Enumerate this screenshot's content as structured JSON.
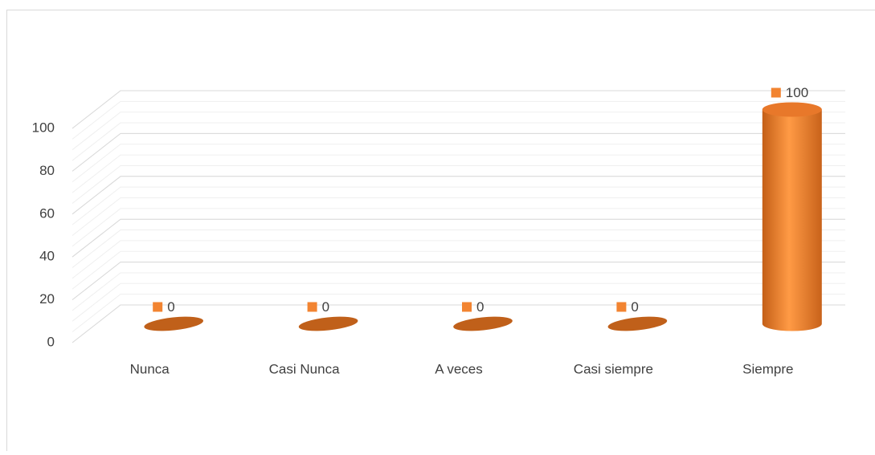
{
  "chart_data": {
    "type": "bar3d",
    "categories": [
      "Nunca",
      "Casi Nunca",
      "A veces",
      "Casi siempre",
      "Siempre"
    ],
    "values": [
      0,
      0,
      0,
      0,
      100
    ],
    "color": "#f28431",
    "ylim": [
      0,
      100
    ],
    "yticks": [
      0,
      20,
      40,
      60,
      80,
      100
    ],
    "grid": true
  }
}
